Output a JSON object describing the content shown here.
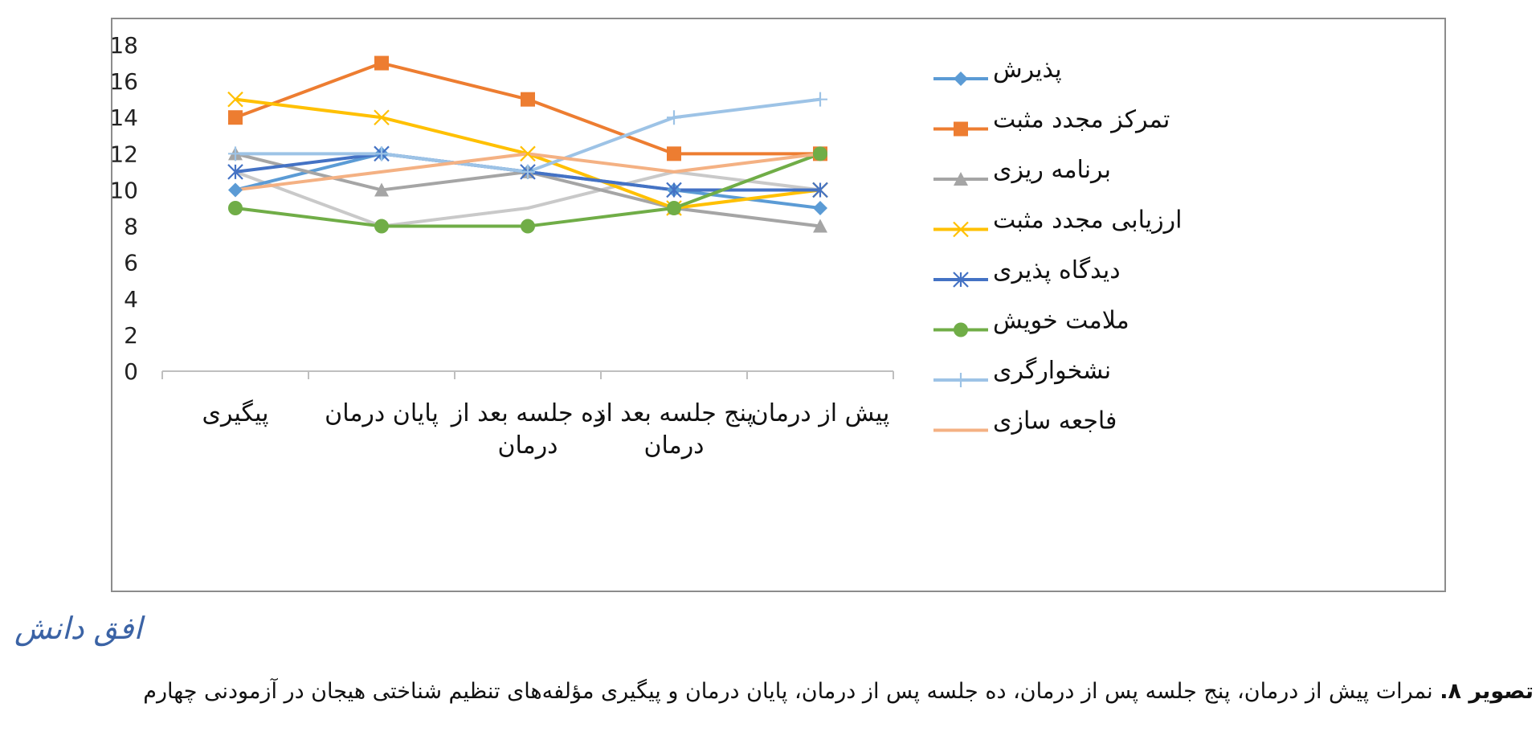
{
  "watermark": "افق دانش",
  "caption": {
    "bold": "تصویر ۸.",
    "text": " نمرات پیش از درمان، پنج جلسه پس از درمان، ده جلسه پس از درمان، پایان درمان و پیگیری مؤلفه‌های تنظیم شناختی هیجان در آزمودنی چهارم"
  },
  "chart_data": {
    "type": "line",
    "categories": [
      [
        "پیش از درمان"
      ],
      [
        "پنج جلسه بعد از",
        "درمان"
      ],
      [
        "ده جلسه بعد از",
        "درمان"
      ],
      [
        "پایان درمان"
      ],
      [
        "پیگیری"
      ]
    ],
    "ylim": [
      0,
      18
    ],
    "yticks": [
      0,
      2,
      4,
      6,
      8,
      10,
      12,
      14,
      16,
      18
    ],
    "grid": false,
    "legend_position": "right",
    "series": [
      {
        "name": "پذیرش",
        "color": "#5b9bd5",
        "marker": "diamond",
        "values": [
          9,
          10,
          11,
          12,
          10
        ]
      },
      {
        "name": "تمرکز مجدد مثبت",
        "color": "#ed7d31",
        "marker": "square",
        "values": [
          12,
          12,
          15,
          17,
          14
        ]
      },
      {
        "name": "برنامه ریزی",
        "color": "#a5a5a5",
        "marker": "triangle",
        "values": [
          8,
          9,
          11,
          10,
          12
        ]
      },
      {
        "name": "ارزیابی مجدد مثبت",
        "color": "#ffc000",
        "marker": "x",
        "values": [
          10,
          9,
          12,
          14,
          15
        ]
      },
      {
        "name": "دیدگاه پذیری",
        "color": "#4472c4",
        "marker": "asterisk",
        "values": [
          10,
          10,
          11,
          12,
          11
        ]
      },
      {
        "name": "ملامت خویش",
        "color": "#70ad47",
        "marker": "circle",
        "values": [
          12,
          9,
          8,
          8,
          9
        ]
      },
      {
        "name": "نشخوارگری",
        "color": "#9dc3e6",
        "marker": "plus",
        "values": [
          15,
          14,
          11,
          12,
          12
        ]
      },
      {
        "name": "فاجعه سازی",
        "color": "#f4b183",
        "marker": "none",
        "values": [
          12,
          11,
          12,
          11,
          10
        ]
      },
      {
        "name": "",
        "color": "#c9c9c9",
        "marker": "none",
        "values": [
          10,
          11,
          9,
          8,
          11
        ]
      }
    ]
  }
}
